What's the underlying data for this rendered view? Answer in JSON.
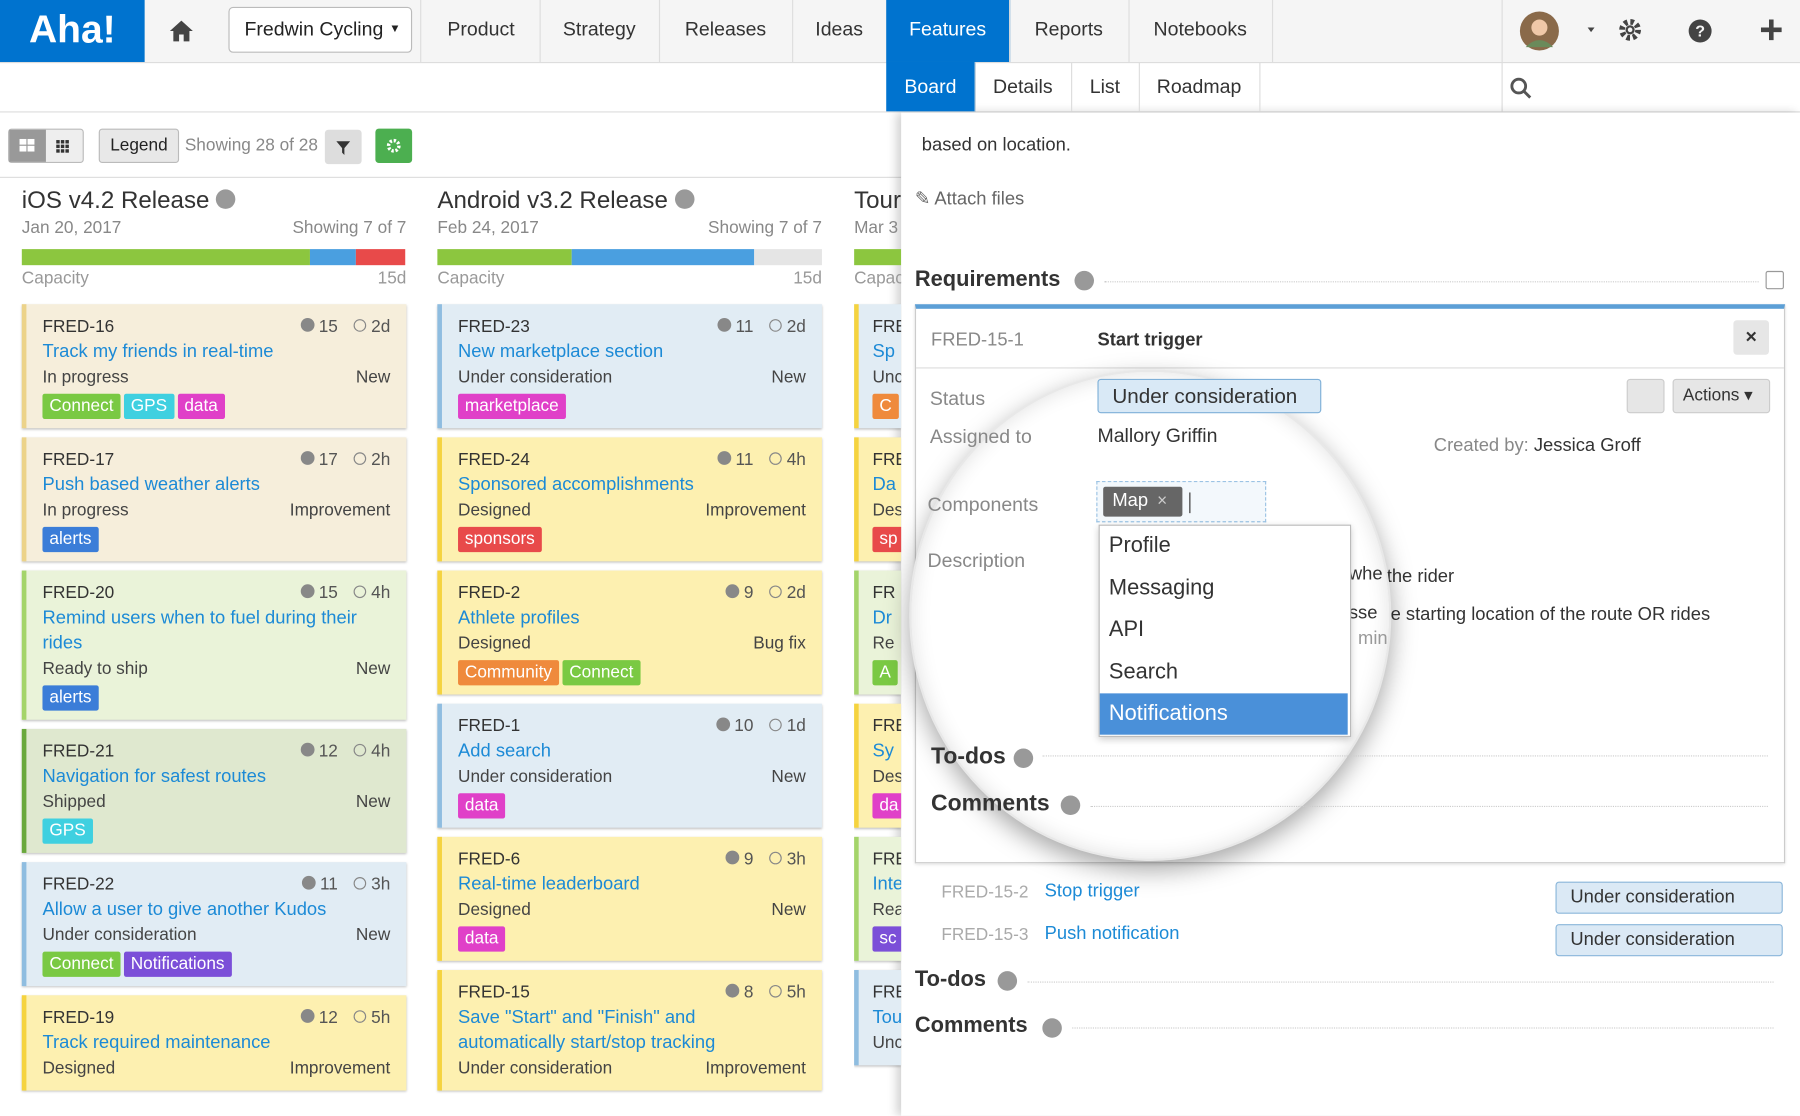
{
  "nav": {
    "logo": "Aha!",
    "workspace": "Fredwin Cycling",
    "tabs": [
      "Product",
      "Strategy",
      "Releases",
      "Ideas",
      "Features",
      "Reports",
      "Notebooks"
    ],
    "active": 4
  },
  "subnav": {
    "tabs": [
      "Board",
      "Details",
      "List",
      "Roadmap"
    ],
    "active": 0
  },
  "toolbar": {
    "legend": "Legend",
    "showing": "Showing 28 of 28"
  },
  "columns": [
    {
      "name": "iOS v4.2 Release",
      "date": "Jan 20, 2017",
      "showing": "Showing 7 of 7",
      "capacity_label": "Capacity",
      "capacity": "15d",
      "cards": [
        {
          "id": "FRED-16",
          "score": "15",
          "estimate": "2d",
          "title": "Track my friends in real-time",
          "status": "In progress",
          "type": "New",
          "bg": "#f6eedb",
          "edge": "#ecd38a",
          "tags": [
            {
              "label": "Connect",
              "color": "#7ac943"
            },
            {
              "label": "GPS",
              "color": "#3fd0e0"
            },
            {
              "label": "data",
              "color": "#e040c8"
            }
          ]
        },
        {
          "id": "FRED-17",
          "score": "17",
          "estimate": "2h",
          "title": "Push based weather alerts",
          "status": "In progress",
          "type": "Improvement",
          "bg": "#f6eedb",
          "edge": "#ecd38a",
          "tags": [
            {
              "label": "alerts",
              "color": "#3b7dd8"
            }
          ]
        },
        {
          "id": "FRED-20",
          "score": "15",
          "estimate": "4h",
          "title": "Remind users when to fuel during their rides",
          "status": "Ready to ship",
          "type": "New",
          "bg": "#eaf3d9",
          "edge": "#a4d46a",
          "tags": [
            {
              "label": "alerts",
              "color": "#3b7dd8"
            }
          ]
        },
        {
          "id": "FRED-21",
          "score": "12",
          "estimate": "4h",
          "title": "Navigation for safest routes",
          "status": "Shipped",
          "type": "New",
          "bg": "#dfe8cf",
          "edge": "#6aa83d",
          "tags": [
            {
              "label": "GPS",
              "color": "#3fd0e0"
            }
          ]
        },
        {
          "id": "FRED-22",
          "score": "11",
          "estimate": "3h",
          "title": "Allow a user to give another Kudos",
          "status": "Under consideration",
          "type": "New",
          "bg": "#e1ecf4",
          "edge": "#8fbde0",
          "tags": [
            {
              "label": "Connect",
              "color": "#7ac943"
            },
            {
              "label": "Notifications",
              "color": "#7b4fd8"
            }
          ]
        },
        {
          "id": "FRED-19",
          "score": "12",
          "estimate": "5h",
          "title": "Track required maintenance",
          "status": "Designed",
          "type": "Improvement",
          "bg": "#fdf0b0",
          "edge": "#f5d33f",
          "tags": []
        }
      ]
    },
    {
      "name": "Android v3.2 Release",
      "date": "Feb 24, 2017",
      "showing": "Showing 7 of 7",
      "capacity_label": "Capacity",
      "capacity": "15d",
      "cards": [
        {
          "id": "FRED-23",
          "score": "11",
          "estimate": "2d",
          "title": "New marketplace section",
          "status": "Under consideration",
          "type": "New",
          "bg": "#e1ecf4",
          "edge": "#8fbde0",
          "tags": [
            {
              "label": "marketplace",
              "color": "#e040c8"
            }
          ]
        },
        {
          "id": "FRED-24",
          "score": "11",
          "estimate": "4h",
          "title": "Sponsored accomplishments",
          "status": "Designed",
          "type": "Improvement",
          "bg": "#fdf0b0",
          "edge": "#f5d33f",
          "tags": [
            {
              "label": "sponsors",
              "color": "#e84a4a"
            }
          ]
        },
        {
          "id": "FRED-2",
          "score": "9",
          "estimate": "2d",
          "title": "Athlete profiles",
          "status": "Designed",
          "type": "Bug fix",
          "bg": "#fdf0b0",
          "edge": "#f5d33f",
          "tags": [
            {
              "label": "Community",
              "color": "#ef8a3c"
            },
            {
              "label": "Connect",
              "color": "#7ac943"
            }
          ]
        },
        {
          "id": "FRED-1",
          "score": "10",
          "estimate": "1d",
          "title": "Add search",
          "status": "Under consideration",
          "type": "New",
          "bg": "#e1ecf4",
          "edge": "#8fbde0",
          "tags": [
            {
              "label": "data",
              "color": "#e040c8"
            }
          ]
        },
        {
          "id": "FRED-6",
          "score": "9",
          "estimate": "3h",
          "title": "Real-time leaderboard",
          "status": "Designed",
          "type": "New",
          "bg": "#fdf0b0",
          "edge": "#f5d33f",
          "tags": [
            {
              "label": "data",
              "color": "#e040c8"
            }
          ]
        },
        {
          "id": "FRED-15",
          "score": "8",
          "estimate": "5h",
          "title": "Save \"Start\" and \"Finish\" and automatically start/stop tracking",
          "status": "Under consideration",
          "type": "Improvement",
          "bg": "#fdf0b0",
          "edge": "#f5d33f",
          "tags": []
        }
      ]
    },
    {
      "name": "Tour",
      "date": "Mar 3",
      "capacity_label": "Capac",
      "cards": [
        {
          "id": "FRE",
          "title": "Sp",
          "status": "Unc",
          "bg": "#e1ecf4",
          "edge": "#f5d33f",
          "tags": [
            {
              "label": "C",
              "color": "#ef8a3c"
            }
          ]
        },
        {
          "id": "FRE",
          "title": "Da",
          "status": "Des",
          "bg": "#fdf0b0",
          "edge": "#f5d33f",
          "tags": [
            {
              "label": "sp",
              "color": "#e84a4a"
            }
          ]
        },
        {
          "id": "FR",
          "title": "Dr",
          "status": "Re",
          "bg": "#eaf3d9",
          "edge": "#a4d46a",
          "tags": [
            {
              "label": "A",
              "color": "#7ac943"
            }
          ]
        },
        {
          "id": "FRE",
          "title": "Sy",
          "status": "Des",
          "bg": "#fdf0b0",
          "edge": "#f5d33f",
          "tags": [
            {
              "label": "da",
              "color": "#e040c8"
            }
          ]
        },
        {
          "id": "FRE",
          "title": "Inte",
          "status": "Rea",
          "bg": "#eaf3d9",
          "edge": "#a4d46a",
          "tags": [
            {
              "label": "sc",
              "color": "#7b4fd8"
            }
          ]
        },
        {
          "id": "FRE",
          "title": "Tou",
          "status": "Unc",
          "bg": "#e1ecf4",
          "edge": "#8fbde0",
          "tags": []
        }
      ]
    }
  ],
  "panel": {
    "intro": "based on location.",
    "attach": "Attach files",
    "requirements": "Requirements",
    "requirement": {
      "id": "FRED-15-1",
      "title": "Start trigger",
      "status_label": "Status",
      "status": "Under consideration",
      "assigned_label": "Assigned to",
      "assigned": "Mallory Griffin",
      "created_label": "Created by:",
      "created": "Jessica Groff",
      "actions": "Actions",
      "components_label": "Components",
      "component": "Map",
      "description_label": "Description",
      "description": [
        "whe",
        "the rider",
        "sse",
        "the starting location of the route OR rides",
        "min"
      ],
      "options": [
        "Profile",
        "Messaging",
        "API",
        "Search",
        "Notifications"
      ],
      "selected": 4,
      "todos": "To-dos",
      "comments": "Comments"
    },
    "others": [
      {
        "id": "FRED-15-2",
        "title": "Stop trigger",
        "status": "Under consideration"
      },
      {
        "id": "FRED-15-3",
        "title": "Push notification",
        "status": "Under consideration"
      }
    ],
    "todos": "To-dos",
    "comments": "Comments"
  }
}
